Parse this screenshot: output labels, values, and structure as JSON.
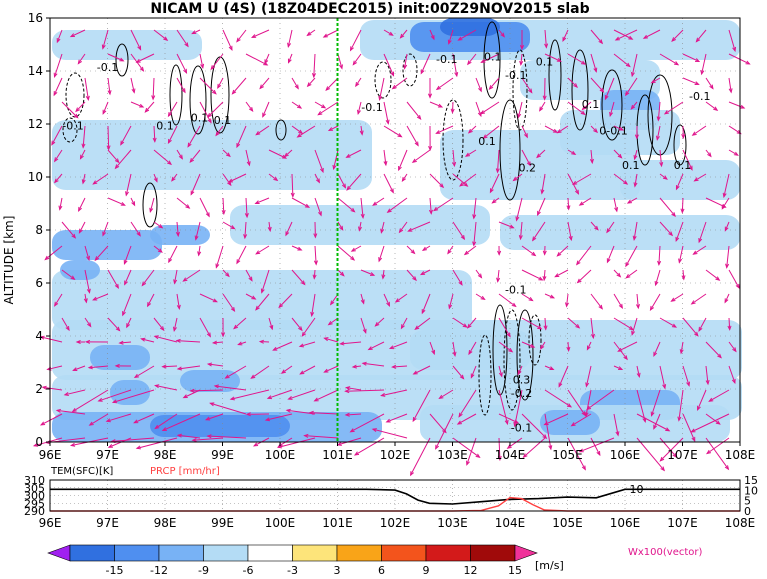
{
  "title": "NICAM U (4S) (18Z04DEC2015) init:00Z29NOV2015 slab",
  "chart_data": [
    {
      "type": "heatmap",
      "panel": "main",
      "ylabel": "ALTITUDE [km]",
      "xticks": [
        "96E",
        "97E",
        "98E",
        "99E",
        "100E",
        "101E",
        "102E",
        "103E",
        "104E",
        "105E",
        "106E",
        "107E",
        "108E"
      ],
      "x_values": [
        96,
        97,
        98,
        99,
        100,
        101,
        102,
        103,
        104,
        105,
        106,
        107,
        108
      ],
      "yticks": [
        "0",
        "2",
        "4",
        "6",
        "8",
        "10",
        "12",
        "14",
        "16"
      ],
      "y_values": [
        0,
        2,
        4,
        6,
        8,
        10,
        12,
        14,
        16
      ],
      "xlim": [
        96,
        108
      ],
      "ylim": [
        0,
        16
      ],
      "grid": true,
      "marker_line_lon": 101,
      "contour_labels": [
        {
          "text": "-0.1",
          "lon": 97.0,
          "alt": 14.0
        },
        {
          "text": "-0.1",
          "lon": 96.4,
          "alt": 11.8
        },
        {
          "text": "0.1",
          "lon": 98.0,
          "alt": 11.8
        },
        {
          "text": "0.1",
          "lon": 98.6,
          "alt": 12.1
        },
        {
          "text": "0.1",
          "lon": 99.0,
          "alt": 12.0
        },
        {
          "text": "-0.1",
          "lon": 101.6,
          "alt": 12.5
        },
        {
          "text": "-0.1",
          "lon": 102.9,
          "alt": 14.3
        },
        {
          "text": "0.1",
          "lon": 103.7,
          "alt": 14.4
        },
        {
          "text": "-0.1",
          "lon": 104.1,
          "alt": 13.7
        },
        {
          "text": "0.1",
          "lon": 104.6,
          "alt": 14.2
        },
        {
          "text": "0.1",
          "lon": 103.6,
          "alt": 11.2
        },
        {
          "text": "0.2",
          "lon": 104.3,
          "alt": 10.2
        },
        {
          "text": "0.1",
          "lon": 105.4,
          "alt": 12.6
        },
        {
          "text": "0-0.1",
          "lon": 105.8,
          "alt": 11.6
        },
        {
          "text": "0.1",
          "lon": 106.1,
          "alt": 10.3
        },
        {
          "text": "0.1",
          "lon": 107.0,
          "alt": 10.3
        },
        {
          "text": "-0.1",
          "lon": 107.3,
          "alt": 12.9
        },
        {
          "text": "-0.1",
          "lon": 104.1,
          "alt": 5.6
        },
        {
          "text": "0.3",
          "lon": 104.2,
          "alt": 2.2
        },
        {
          "text": "-0.2",
          "lon": 104.2,
          "alt": 1.7
        },
        {
          "text": "-0.1",
          "lon": 104.2,
          "alt": 0.4
        }
      ]
    },
    {
      "type": "line",
      "panel": "bottom",
      "left_label": "TEM(SFC)[K]",
      "right_label": "PRCP [mm/hr]",
      "left_ticks": [
        "310",
        "305",
        "300",
        "295",
        "290"
      ],
      "right_ticks": [
        "15",
        "10",
        "5",
        "0"
      ],
      "xticks": [
        "96E",
        "97E",
        "98E",
        "99E",
        "100E",
        "101E",
        "102E",
        "103E",
        "104E",
        "105E",
        "106E",
        "107E",
        "108E"
      ],
      "ylim_left": [
        290,
        310
      ],
      "ylim_right": [
        0,
        15
      ],
      "series": [
        {
          "name": "TEM(SFC)[K]",
          "color": "#000000",
          "x": [
            96,
            97,
            98,
            99,
            100,
            101,
            101.5,
            102,
            102.2,
            102.4,
            102.6,
            103,
            103.5,
            104,
            104.5,
            105,
            105.5,
            106,
            106.5,
            107,
            108
          ],
          "y": [
            304,
            304,
            304,
            304,
            304,
            304,
            304,
            303.5,
            301,
            297,
            295,
            294.5,
            296,
            297.5,
            298,
            299,
            298.5,
            304,
            304,
            304,
            304
          ]
        },
        {
          "name": "PRCP [mm/hr]",
          "color": "#ff4040",
          "x": [
            96,
            103,
            103.5,
            103.8,
            104.0,
            104.2,
            104.4,
            104.6,
            105,
            108
          ],
          "y": [
            0,
            0,
            0.3,
            2.5,
            6.5,
            6,
            3,
            0.5,
            0,
            0
          ]
        }
      ],
      "annotations": [
        {
          "text": "10",
          "lon": 106.2
        }
      ]
    }
  ],
  "colorbar": {
    "labels": [
      "-15",
      "-12",
      "-9",
      "-6",
      "-3",
      "3",
      "6",
      "9",
      "12",
      "15"
    ],
    "colors": [
      "#a020f0",
      "#3070e0",
      "#4f8ff0",
      "#78b2f5",
      "#b4dcf5",
      "#ffffff",
      "#fde47a",
      "#f9a418",
      "#f3541c",
      "#d31a1a",
      "#a00a0a",
      "#f0329a"
    ],
    "unit": "[m/s]",
    "vector_label": "Wx100(vector)"
  },
  "colors": {
    "vector": "#e0158c",
    "marker": "#00bb00",
    "prcp": "#ff4040"
  }
}
